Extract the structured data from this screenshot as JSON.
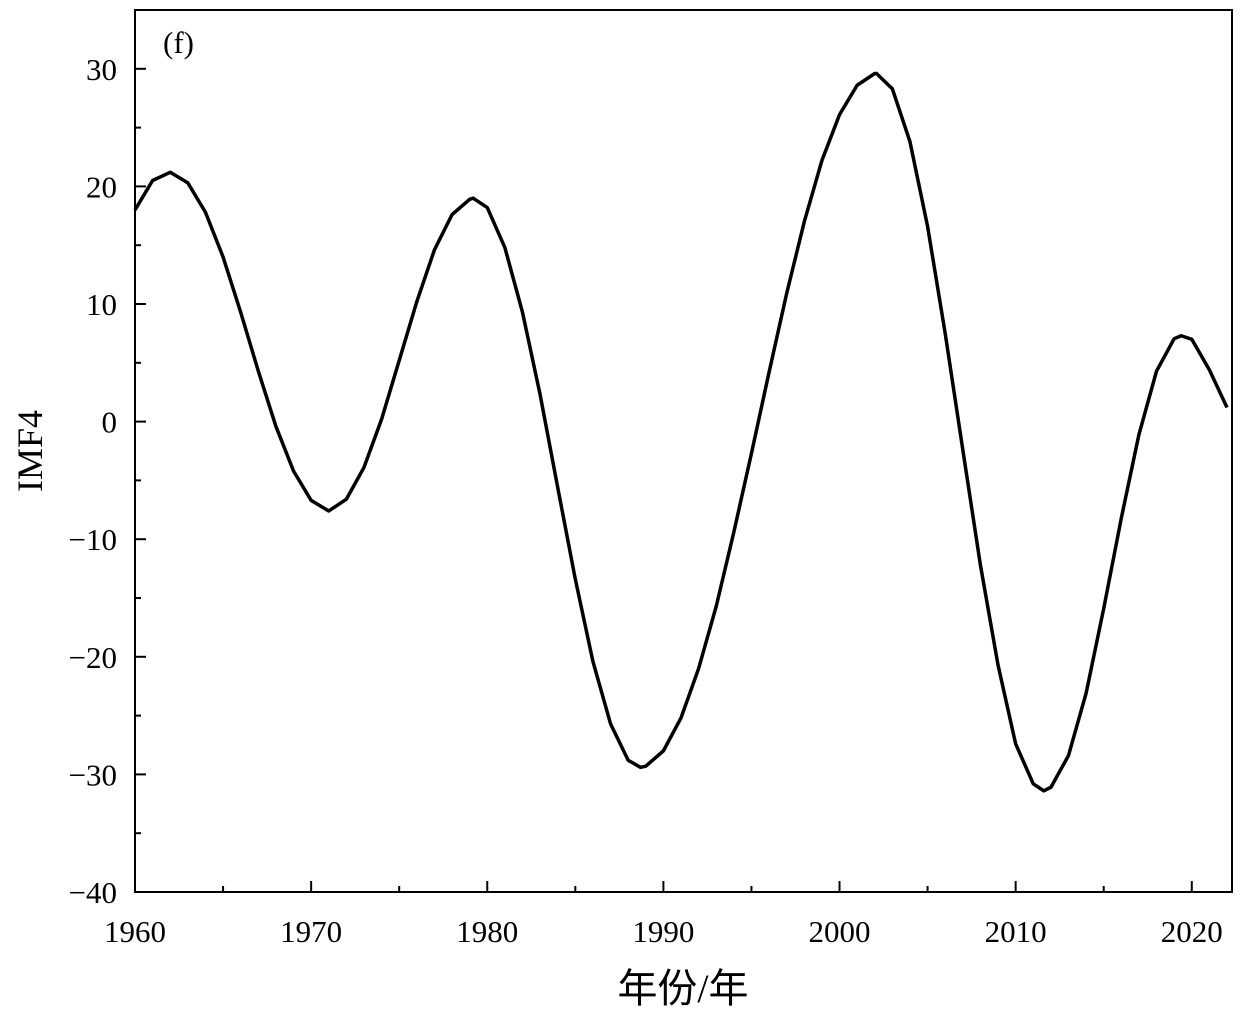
{
  "chart_data": {
    "type": "line",
    "annotation": "(f)",
    "xlabel": "年份/年",
    "ylabel": "IMF4",
    "x": [
      1960,
      1961,
      1962,
      1963,
      1964,
      1965,
      1966,
      1967,
      1968,
      1969,
      1970,
      1971,
      1972,
      1973,
      1974,
      1975,
      1976,
      1977,
      1978,
      1979,
      1979.2,
      1980,
      1981,
      1982,
      1983,
      1984,
      1985,
      1986,
      1987,
      1988,
      1988.7,
      1989,
      1990,
      1991,
      1992,
      1993,
      1994,
      1995,
      1996,
      1997,
      1998,
      1999,
      2000,
      2001,
      2002,
      2002.1,
      2003,
      2004,
      2005,
      2006,
      2007,
      2008,
      2009,
      2010,
      2011,
      2011.6,
      2012,
      2013,
      2014,
      2015,
      2016,
      2017,
      2018,
      2019,
      2019.4,
      2020,
      2021,
      2022
    ],
    "series": [
      {
        "name": "IMF4",
        "color": "#000000",
        "values": [
          18.0,
          20.5,
          21.2,
          20.3,
          17.8,
          14.0,
          9.3,
          4.3,
          -0.4,
          -4.2,
          -6.7,
          -7.6,
          -6.6,
          -3.9,
          0.2,
          5.2,
          10.2,
          14.6,
          17.6,
          18.9,
          19.0,
          18.2,
          14.8,
          9.3,
          2.3,
          -5.6,
          -13.4,
          -20.4,
          -25.7,
          -28.8,
          -29.4,
          -29.3,
          -28.0,
          -25.2,
          -21.0,
          -15.7,
          -9.4,
          -2.7,
          4.2,
          10.9,
          17.0,
          22.2,
          26.1,
          28.6,
          29.6,
          29.6,
          28.3,
          23.8,
          16.6,
          7.5,
          -2.4,
          -12.2,
          -20.7,
          -27.4,
          -30.8,
          -31.4,
          -31.1,
          -28.4,
          -23.1,
          -15.9,
          -8.2,
          -1.1,
          4.3,
          7.05,
          7.3,
          7.0,
          4.4,
          1.2
        ]
      }
    ],
    "xlim": [
      1960,
      2022
    ],
    "ylim": [
      -40,
      35
    ],
    "xticks": [
      1960,
      1970,
      1980,
      1990,
      2000,
      2010,
      2020
    ],
    "yticks": [
      {
        "value": -40,
        "label": "−40"
      },
      {
        "value": -30,
        "label": "−30"
      },
      {
        "value": -20,
        "label": "−20"
      },
      {
        "value": -10,
        "label": "−10"
      },
      0,
      10,
      20,
      30
    ],
    "minor_ticks": true,
    "grid": false
  }
}
